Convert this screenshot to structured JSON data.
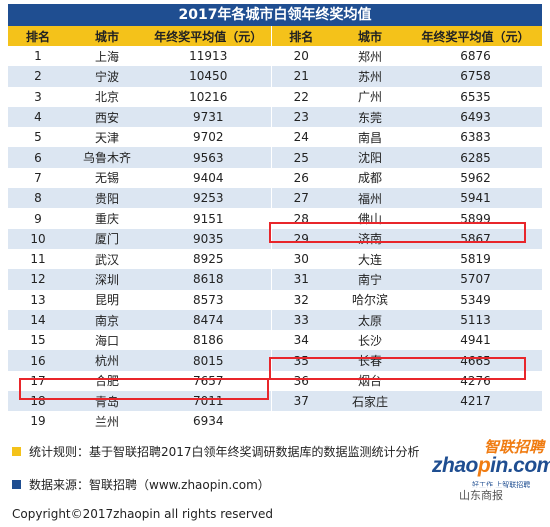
{
  "title": "2017年各城市白领年终奖均值",
  "headers": [
    "排名",
    "城市",
    "年终奖平均值（元）",
    "排名",
    "城市",
    "年终奖平均值（元）"
  ],
  "left_rows": [
    {
      "rank": "1",
      "city": "上海",
      "value": "11913"
    },
    {
      "rank": "2",
      "city": "宁波",
      "value": "10450"
    },
    {
      "rank": "3",
      "city": "北京",
      "value": "10216"
    },
    {
      "rank": "4",
      "city": "西安",
      "value": "9731"
    },
    {
      "rank": "5",
      "city": "天津",
      "value": "9702"
    },
    {
      "rank": "6",
      "city": "乌鲁木齐",
      "value": "9563"
    },
    {
      "rank": "7",
      "city": "无锡",
      "value": "9404"
    },
    {
      "rank": "8",
      "city": "贵阳",
      "value": "9253"
    },
    {
      "rank": "9",
      "city": "重庆",
      "value": "9151"
    },
    {
      "rank": "10",
      "city": "厦门",
      "value": "9035"
    },
    {
      "rank": "11",
      "city": "武汉",
      "value": "8925"
    },
    {
      "rank": "12",
      "city": "深圳",
      "value": "8618"
    },
    {
      "rank": "13",
      "city": "昆明",
      "value": "8573"
    },
    {
      "rank": "14",
      "city": "南京",
      "value": "8474"
    },
    {
      "rank": "15",
      "city": "海口",
      "value": "8186"
    },
    {
      "rank": "16",
      "city": "杭州",
      "value": "8015"
    },
    {
      "rank": "17",
      "city": "合肥",
      "value": "7657"
    },
    {
      "rank": "18",
      "city": "青岛",
      "value": "7011"
    },
    {
      "rank": "19",
      "city": "兰州",
      "value": "6934"
    }
  ],
  "right_rows": [
    {
      "rank": "20",
      "city": "郑州",
      "value": "6876"
    },
    {
      "rank": "21",
      "city": "苏州",
      "value": "6758"
    },
    {
      "rank": "22",
      "city": "广州",
      "value": "6535"
    },
    {
      "rank": "23",
      "city": "东莞",
      "value": "6493"
    },
    {
      "rank": "24",
      "city": "南昌",
      "value": "6383"
    },
    {
      "rank": "25",
      "city": "沈阳",
      "value": "6285"
    },
    {
      "rank": "26",
      "city": "成都",
      "value": "5962"
    },
    {
      "rank": "27",
      "city": "福州",
      "value": "5941"
    },
    {
      "rank": "28",
      "city": "佛山",
      "value": "5899"
    },
    {
      "rank": "29",
      "city": "济南",
      "value": "5867"
    },
    {
      "rank": "30",
      "city": "大连",
      "value": "5819"
    },
    {
      "rank": "31",
      "city": "南宁",
      "value": "5707"
    },
    {
      "rank": "32",
      "city": "哈尔滨",
      "value": "5349"
    },
    {
      "rank": "33",
      "city": "太原",
      "value": "5113"
    },
    {
      "rank": "34",
      "city": "长沙",
      "value": "4941"
    },
    {
      "rank": "35",
      "city": "长春",
      "value": "4665"
    },
    {
      "rank": "36",
      "city": "烟台",
      "value": "4276"
    },
    {
      "rank": "37",
      "city": "石家庄",
      "value": "4217"
    }
  ],
  "highlighted": [
    "济南",
    "烟台",
    "青岛"
  ],
  "footnotes": {
    "rule": "统计规则：基于智联招聘2017白领年终奖调研数据库的数据监测统计分析",
    "source": "数据来源：智联招聘（www.zhaopin.com）",
    "copyright": "Copyright©2017zhaopin all rights reserved"
  },
  "logo": {
    "cn": "智联招聘",
    "en_left": "zhao",
    "en_dot": "p",
    "en_right": "in.com",
    "tagline": "好工作 上智联招聘"
  },
  "watermark": "山东商报",
  "colors": {
    "header_bg": "#f4c21a",
    "title_bg": "#1f4e91",
    "stripe": "#dce6f2",
    "highlight": "#e8262b",
    "rule_square": "#f4c21a",
    "source_square": "#1f4e91"
  }
}
